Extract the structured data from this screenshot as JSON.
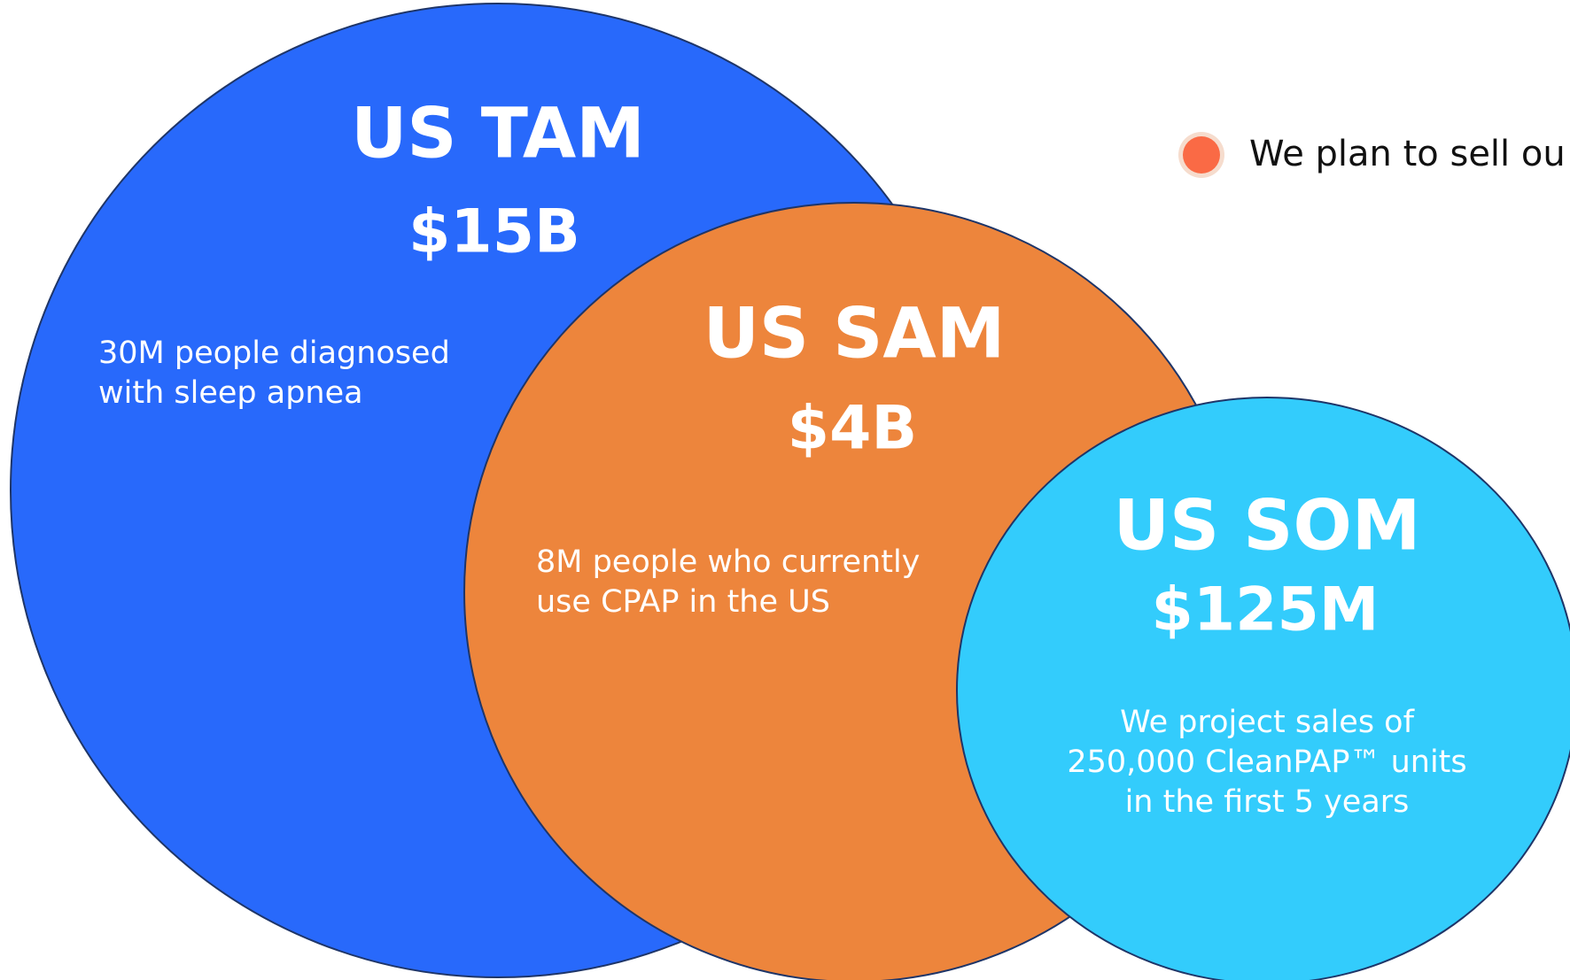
{
  "circles": [
    {
      "title": "US TAM",
      "value": "$15B",
      "description": [
        "30M people diagnosed",
        "with sleep apnea"
      ]
    },
    {
      "title": "US SAM",
      "value": "$4B",
      "description": [
        "8M people who currently",
        "use CPAP in the US"
      ]
    },
    {
      "title": "US SOM",
      "value": "$125M",
      "description": [
        "We project sales of",
        "250,000 CleanPAP™ units",
        "in the first 5 years"
      ]
    }
  ],
  "legend": {
    "text": "We plan to sell ou"
  }
}
